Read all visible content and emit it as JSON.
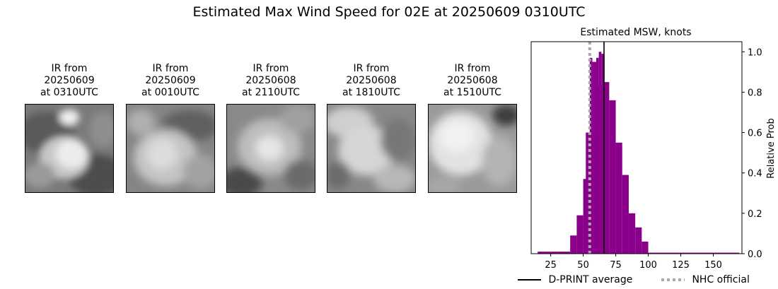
{
  "suptitle": "Estimated Max Wind Speed for 02E at 20250609 0310UTC",
  "panels": [
    {
      "title": "IR from\n20250609\nat 0310UTC"
    },
    {
      "title": "IR from\n20250609\nat 0010UTC"
    },
    {
      "title": "IR from\n20250608\nat 2110UTC"
    },
    {
      "title": "IR from\n20250608\nat 1810UTC"
    },
    {
      "title": "IR from\n20250608\nat 1510UTC"
    }
  ],
  "chart_data": {
    "type": "bar",
    "title": "Estimated MSW, knots",
    "xlabel": "",
    "ylabel": "Relative Prob",
    "xlim": [
      10,
      172
    ],
    "ylim": [
      0,
      1.05
    ],
    "xticks": [
      25,
      50,
      75,
      100,
      125,
      150
    ],
    "yticks": [
      0.0,
      0.2,
      0.4,
      0.6,
      0.8,
      1.0
    ],
    "ytick_labels": [
      "0.0",
      "0.2",
      "0.4",
      "0.6",
      "0.8",
      "1.0"
    ],
    "y_axis_side": "right",
    "bar_color": "#8b008b",
    "bin_width": 5,
    "bins": [
      {
        "x0": 15,
        "value": 0.01
      },
      {
        "x0": 20,
        "value": 0.01
      },
      {
        "x0": 25,
        "value": 0.01
      },
      {
        "x0": 30,
        "value": 0.01
      },
      {
        "x0": 35,
        "value": 0.01
      },
      {
        "x0": 40,
        "value": 0.09
      },
      {
        "x0": 45,
        "value": 0.19
      },
      {
        "x0": 50,
        "value": 0.37
      },
      {
        "x0": 55,
        "value": 0.59
      },
      {
        "x0": 60,
        "value": 0.83
      },
      {
        "x0": 65,
        "value": 0.85
      },
      {
        "x0": 70,
        "value": 0.76
      },
      {
        "x0": 75,
        "value": 0.55
      },
      {
        "x0": 80,
        "value": 0.39
      },
      {
        "x0": 85,
        "value": 0.2
      },
      {
        "x0": 90,
        "value": 0.13
      },
      {
        "x0": 95,
        "value": 0.06
      },
      {
        "x0": 100,
        "value": 0.005
      },
      {
        "x0": 105,
        "value": 0.005
      },
      {
        "x0": 110,
        "value": 0.005
      },
      {
        "x0": 115,
        "value": 0.005
      },
      {
        "x0": 120,
        "value": 0.005
      },
      {
        "x0": 125,
        "value": 0.005
      },
      {
        "x0": 130,
        "value": 0.005
      },
      {
        "x0": 135,
        "value": 0.005
      },
      {
        "x0": 140,
        "value": 0.005
      },
      {
        "x0": 145,
        "value": 0.005
      },
      {
        "x0": 150,
        "value": 0.005
      },
      {
        "x0": 155,
        "value": 0.005
      },
      {
        "x0": 160,
        "value": 0.005
      },
      {
        "x0": 165,
        "value": 0.005
      }
    ],
    "sub_bins": [
      {
        "x0": 52,
        "x1": 55,
        "value": 0.6
      },
      {
        "x0": 55,
        "x1": 57,
        "value": 0.97
      },
      {
        "x0": 57,
        "x1": 60,
        "value": 0.95
      },
      {
        "x0": 60,
        "x1": 62,
        "value": 0.97
      },
      {
        "x0": 62,
        "x1": 64,
        "value": 1.0
      },
      {
        "x0": 64,
        "x1": 66,
        "value": 0.99
      }
    ],
    "dprint_average": 66,
    "nhc_official": 55,
    "legend": {
      "placement": "bottom",
      "entries": [
        {
          "label": "D-PRINT average",
          "style": "solid",
          "color": "#000000"
        },
        {
          "label": "NHC official",
          "style": "dotted",
          "color": "#a9a9a9"
        }
      ]
    }
  }
}
